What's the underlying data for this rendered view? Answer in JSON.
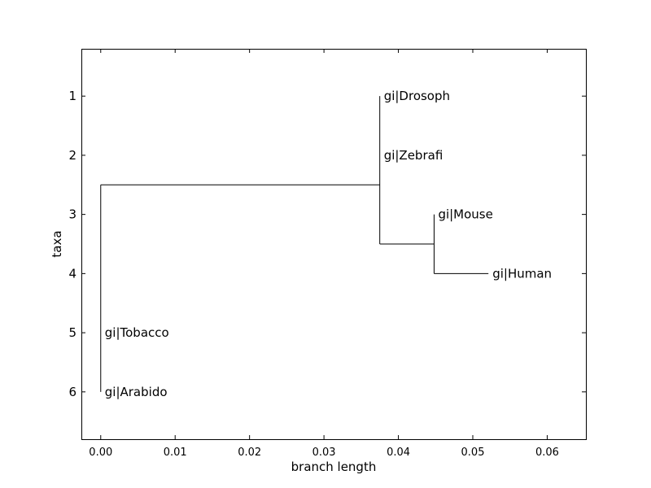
{
  "chart_data": {
    "type": "tree",
    "title": "",
    "xlabel": "branch length",
    "ylabel": "taxa",
    "xlim": [
      -0.0026,
      0.0652
    ],
    "ylim": [
      6.8,
      0.2
    ],
    "x_ticks": [
      0.0,
      0.01,
      0.02,
      0.03,
      0.04,
      0.05,
      0.06
    ],
    "x_tick_labels": [
      "0.00",
      "0.01",
      "0.02",
      "0.03",
      "0.04",
      "0.05",
      "0.06"
    ],
    "y_ticks": [
      1,
      2,
      3,
      4,
      5,
      6
    ],
    "y_tick_labels": [
      "1",
      "2",
      "3",
      "4",
      "5",
      "6"
    ],
    "grid": false,
    "line_color": "#000000",
    "taxa": [
      {
        "label": "gi|Drosoph",
        "y": 1,
        "x": 0.0375
      },
      {
        "label": "gi|Zebrafi",
        "y": 2,
        "x": 0.0375
      },
      {
        "label": "gi|Mouse",
        "y": 3,
        "x": 0.0448
      },
      {
        "label": "gi|Human",
        "y": 4,
        "x": 0.0521
      },
      {
        "label": "gi|Tobacco",
        "y": 5,
        "x": 0.0
      },
      {
        "label": "gi|Arabido",
        "y": 6,
        "x": 0.0
      }
    ],
    "clades": [
      {
        "x": 0.0,
        "y_span": [
          2.5,
          6
        ]
      },
      {
        "x": 0.0375,
        "y_span": [
          1,
          3.5
        ]
      },
      {
        "x": 0.0448,
        "y_span": [
          3,
          4
        ]
      }
    ],
    "branches": [
      {
        "x1": 0.0,
        "x2": 0.0375,
        "y": 2.5
      },
      {
        "x1": 0.0375,
        "x2": 0.0448,
        "y": 3.5
      },
      {
        "x1": 0.0448,
        "x2": 0.0521,
        "y": 4
      }
    ]
  }
}
